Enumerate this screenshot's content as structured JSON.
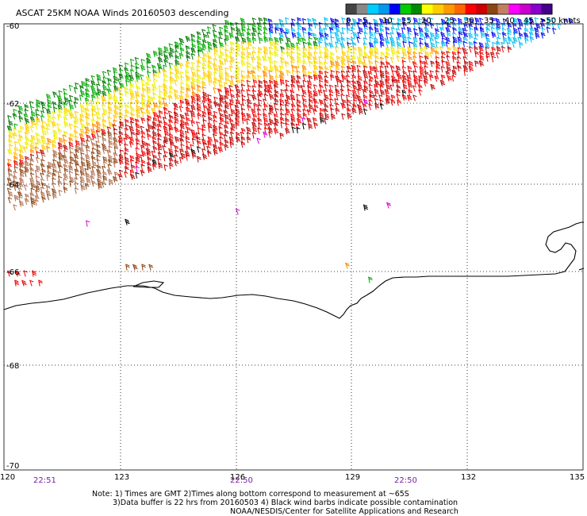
{
  "title": "ASCAT 25KM NOAA Winds 20160503 descending",
  "legend": {
    "labels": [
      "0",
      "5",
      "10",
      "15",
      "20",
      "25",
      "30",
      "35",
      "40",
      "45",
      ">50 knots"
    ],
    "colors": [
      "#444444",
      "#888888",
      "#00ccff",
      "#0099ee",
      "#0000ff",
      "#00cc00",
      "#008800",
      "#ffff00",
      "#ffcc00",
      "#ff9900",
      "#ff6600",
      "#ff0000",
      "#cc0000",
      "#8b4513",
      "#c08060",
      "#ff00ff",
      "#cc00cc",
      "#8800cc",
      "#440088"
    ]
  },
  "axes": {
    "lat_labels": [
      "-60",
      "-62",
      "-64",
      "-66",
      "-68",
      "-70"
    ],
    "lon_labels": [
      "120",
      "123",
      "126",
      "129",
      "132",
      "135"
    ]
  },
  "times": [
    "22:51",
    "22:50",
    "22:50"
  ],
  "notes": [
    "Note: 1) Times are GMT 2)Times along bottom correspond to measurement at ~65S",
    "3)Data buffer is 22 hrs from 20160503 4) Black wind barbs indicate possible contamination",
    "NOAA/NESDIS/Center for Satellite Applications and Research"
  ],
  "wind_colors": {
    "blue": "#0000ee",
    "cyan": "#00bbee",
    "green": "#00aa00",
    "darkgreen": "#007700",
    "yellow": "#eeee00",
    "gold": "#ffcc00",
    "orange": "#ff8800",
    "red": "#ee0000",
    "darkred": "#bb0000",
    "brown": "#8b4513",
    "tan": "#b07050",
    "magenta": "#dd00dd",
    "black": "#000000"
  }
}
